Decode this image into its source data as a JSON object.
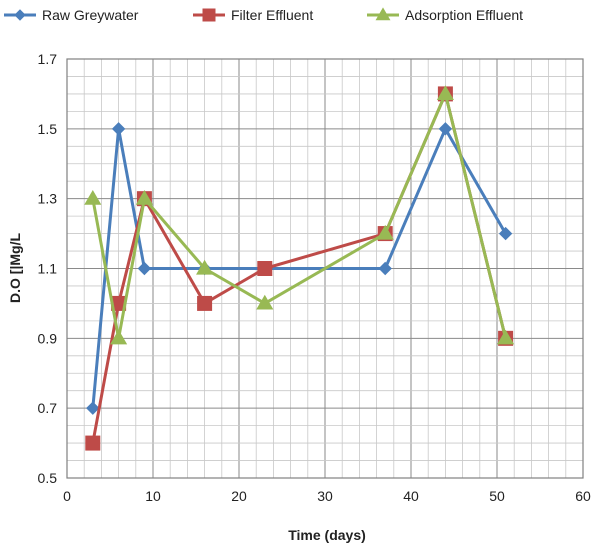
{
  "chart_data": {
    "type": "line",
    "title": "",
    "xlabel": "Time (days)",
    "ylabel": "D.O [|Mg/L",
    "xlim": [
      0,
      60
    ],
    "ylim": [
      0.5,
      1.7
    ],
    "x_ticks": [
      "0",
      "10",
      "20",
      "30",
      "40",
      "50",
      "60"
    ],
    "y_ticks": [
      "0.5",
      "0.7",
      "0.9",
      "1.1",
      "1.3",
      "1.5",
      "1.7"
    ],
    "grid": true,
    "minor_grid": true,
    "legend_position": "top",
    "series": [
      {
        "name": "Raw Greywater",
        "color": "#4a7ebb",
        "marker": "diamond",
        "x": [
          3,
          6,
          9,
          16,
          23,
          37,
          44,
          51
        ],
        "y": [
          0.7,
          1.5,
          1.1,
          1.1,
          1.1,
          1.1,
          1.5,
          1.2
        ]
      },
      {
        "name": "Filter Effluent",
        "color": "#be4b48",
        "marker": "square",
        "x": [
          3,
          6,
          9,
          16,
          23,
          37,
          44,
          51
        ],
        "y": [
          0.6,
          1.0,
          1.3,
          1.0,
          1.1,
          1.2,
          1.6,
          0.9
        ]
      },
      {
        "name": "Adsorption Effluent",
        "color": "#98b954",
        "marker": "triangle",
        "x": [
          3,
          6,
          9,
          16,
          23,
          37,
          44,
          51
        ],
        "y": [
          1.3,
          0.9,
          1.3,
          1.1,
          1.0,
          1.2,
          1.6,
          0.9
        ]
      }
    ]
  }
}
